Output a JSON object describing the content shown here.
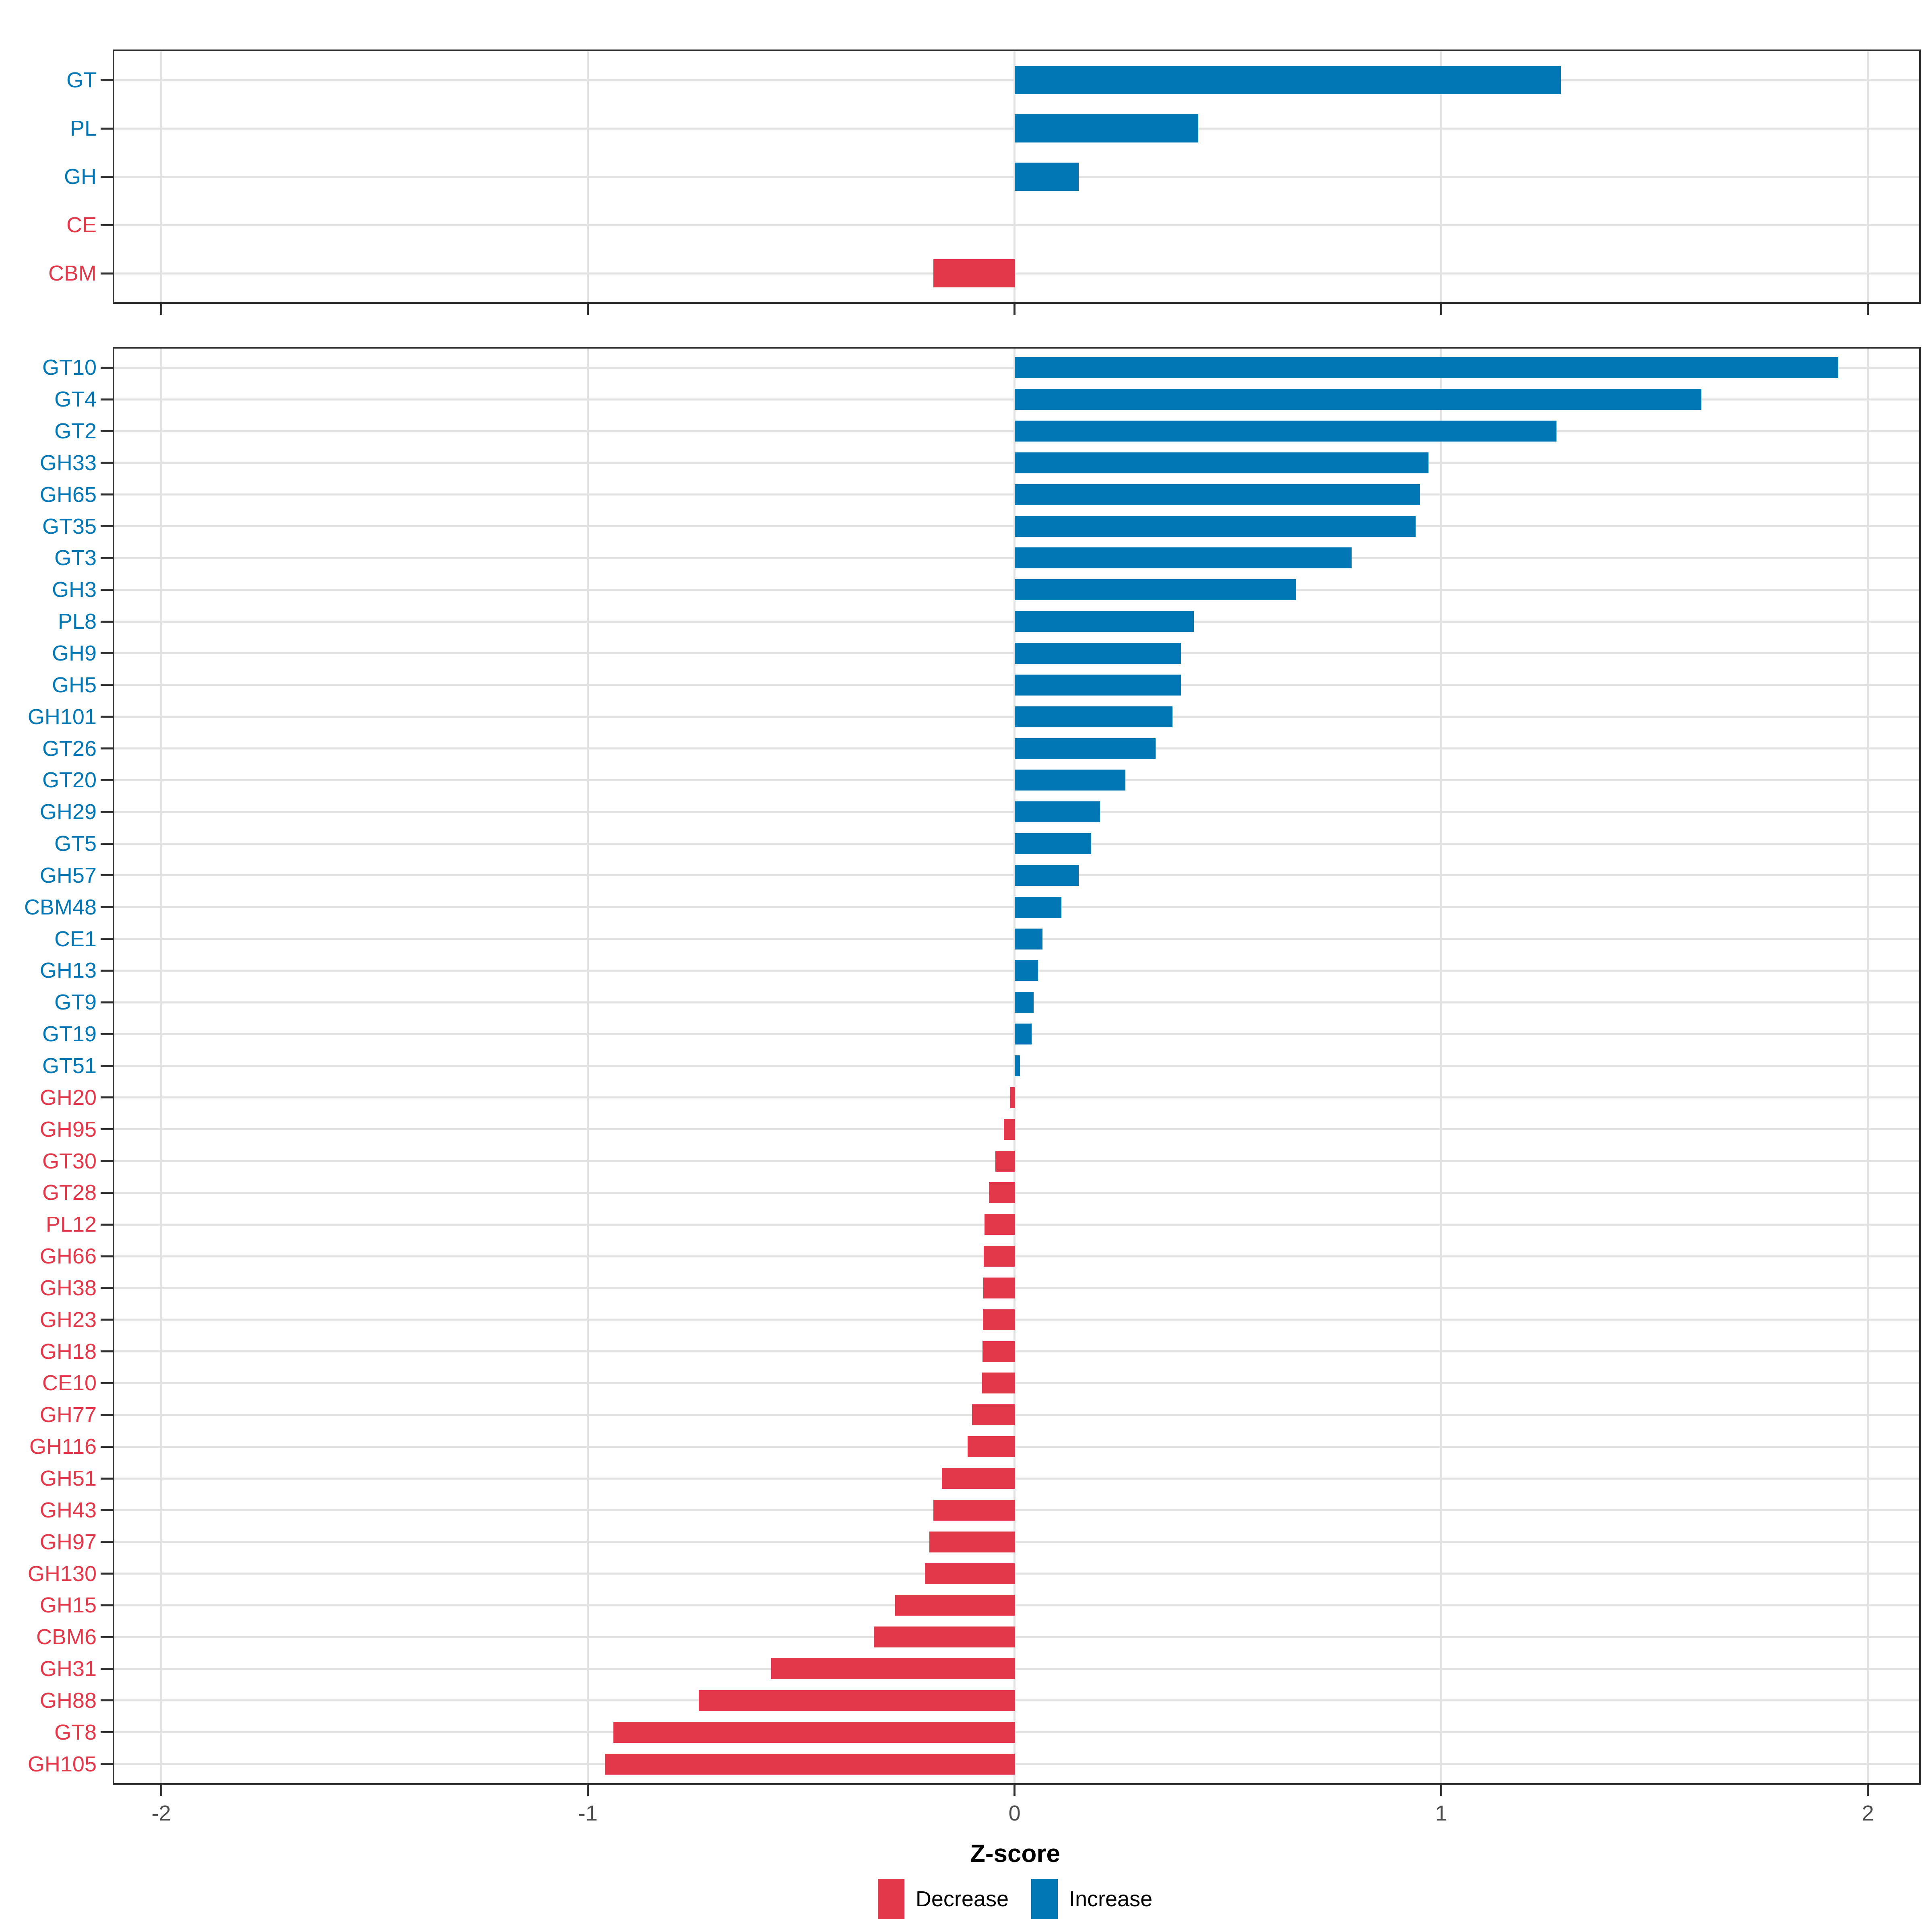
{
  "axis": {
    "xlabel": "Z-score",
    "xticks": [
      -2,
      -1,
      0,
      1,
      2
    ],
    "xtick_labels": [
      "-2",
      "-1",
      "0",
      "1",
      "2"
    ],
    "xlim": [
      -2.11,
      2.12
    ]
  },
  "colors": {
    "increase": "#0277B5",
    "decrease": "#E23849",
    "grid": "#E2E2E2",
    "panel_border": "#2E2E2E",
    "tick": "#333333",
    "axis_text": "#4D4D4D"
  },
  "legend": {
    "items": [
      {
        "label": "Decrease",
        "key": "decrease"
      },
      {
        "label": "Increase",
        "key": "increase"
      }
    ]
  },
  "chart_data": [
    {
      "panel": "cazyme-classes",
      "type": "bar",
      "orientation": "horizontal",
      "xlabel": "",
      "categories": [
        "GT",
        "PL",
        "GH",
        "CE",
        "CBM"
      ],
      "values": [
        1.28,
        0.43,
        0.15,
        0,
        -0.19
      ],
      "directions": [
        "increase",
        "increase",
        "increase",
        "decrease",
        "decrease"
      ],
      "xlim": [
        -2.11,
        2.12
      ],
      "grid": true,
      "legend_position": "none"
    },
    {
      "panel": "cazyme-families",
      "type": "bar",
      "orientation": "horizontal",
      "xlabel": "Z-score",
      "categories": [
        "GT10",
        "GT4",
        "GT2",
        "GH33",
        "GH65",
        "GT35",
        "GT3",
        "GH3",
        "PL8",
        "GH9",
        "GH5",
        "GH101",
        "GT26",
        "GT20",
        "GH29",
        "GT5",
        "GH57",
        "CBM48",
        "CE1",
        "GH13",
        "GT9",
        "GT19",
        "GT51",
        "GH20",
        "GH95",
        "GT30",
        "GT28",
        "PL12",
        "GH66",
        "GH38",
        "GH23",
        "GH18",
        "CE10",
        "GH77",
        "GH116",
        "GH51",
        "GH43",
        "GH97",
        "GH130",
        "GH15",
        "CBM6",
        "GH31",
        "GH88",
        "GT8",
        "GH105"
      ],
      "values": [
        1.93,
        1.61,
        1.27,
        0.97,
        0.95,
        0.94,
        0.79,
        0.66,
        0.42,
        0.39,
        0.39,
        0.37,
        0.33,
        0.26,
        0.2,
        0.18,
        0.15,
        0.11,
        0.065,
        0.055,
        0.045,
        0.04,
        0.013,
        -0.01,
        -0.025,
        -0.045,
        -0.06,
        -0.07,
        -0.072,
        -0.073,
        -0.074,
        -0.075,
        -0.076,
        -0.1,
        -0.11,
        -0.17,
        -0.19,
        -0.2,
        -0.21,
        -0.28,
        -0.33,
        -0.57,
        -0.74,
        -0.94,
        -0.96
      ],
      "directions": [
        "increase",
        "increase",
        "increase",
        "increase",
        "increase",
        "increase",
        "increase",
        "increase",
        "increase",
        "increase",
        "increase",
        "increase",
        "increase",
        "increase",
        "increase",
        "increase",
        "increase",
        "increase",
        "increase",
        "increase",
        "increase",
        "increase",
        "increase",
        "decrease",
        "decrease",
        "decrease",
        "decrease",
        "decrease",
        "decrease",
        "decrease",
        "decrease",
        "decrease",
        "decrease",
        "decrease",
        "decrease",
        "decrease",
        "decrease",
        "decrease",
        "decrease",
        "decrease",
        "decrease",
        "decrease",
        "decrease",
        "decrease",
        "decrease"
      ],
      "xlim": [
        -2.11,
        2.12
      ],
      "grid": true,
      "legend_position": "bottom"
    }
  ]
}
